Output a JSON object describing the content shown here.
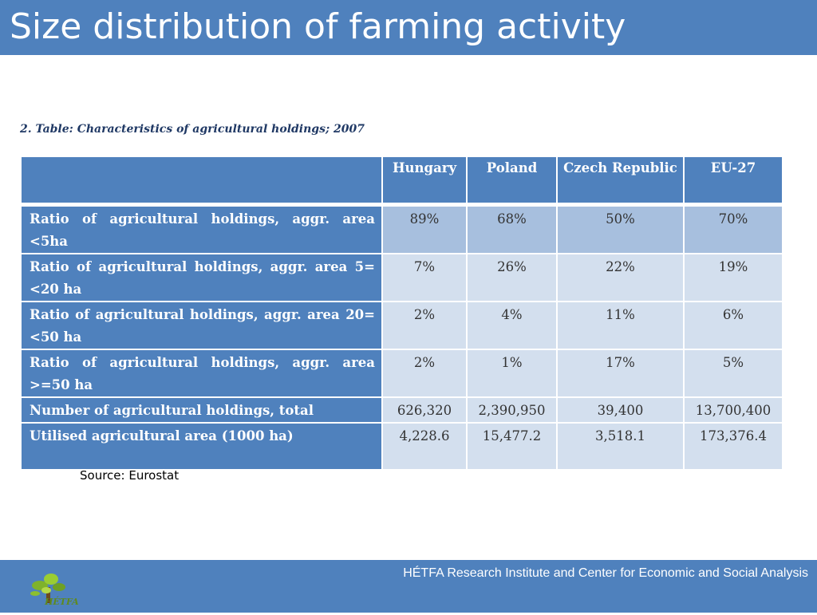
{
  "slide": {
    "title": "Size distribution of farming activity",
    "caption": "2. Table: Characteristics of agricultural holdings; 2007",
    "source": "Source: Eurostat",
    "footer": "HÉTFA Research Institute and Center for Economic and Social Analysis",
    "logo_text": "HÉTFA"
  },
  "table": {
    "columns": [
      "Hungary",
      "Poland",
      "Czech Republic",
      "EU-27"
    ],
    "rows": [
      {
        "label": "Ratio of agricultural holdings, aggr. area <5ha",
        "values": [
          "89%",
          "68%",
          "50%",
          "70%"
        ]
      },
      {
        "label": "Ratio of agricultural holdings, aggr. area 5=<20 ha",
        "values": [
          "7%",
          "26%",
          "22%",
          "19%"
        ]
      },
      {
        "label": "Ratio of agricultural holdings, aggr. area 20=<50 ha",
        "values": [
          "2%",
          "4%",
          "11%",
          "6%"
        ]
      },
      {
        "label": "Ratio of agricultural holdings, aggr. area >=50 ha",
        "values": [
          "2%",
          "1%",
          "17%",
          "5%"
        ]
      },
      {
        "label": "Number of agricultural holdings, total",
        "values": [
          "626,320",
          "2,390,950",
          "39,400",
          "13,700,400"
        ]
      },
      {
        "label": "Utilised agricultural area (1000 ha)",
        "values": [
          "4,228.6",
          "15,477.2",
          "3,518.1",
          "173,376.4"
        ]
      }
    ]
  },
  "colors": {
    "accent": "#4f81bd",
    "row_dark": "#a7bfde",
    "row_light": "#d3dfee",
    "logo_green": "#5e8a1e"
  }
}
